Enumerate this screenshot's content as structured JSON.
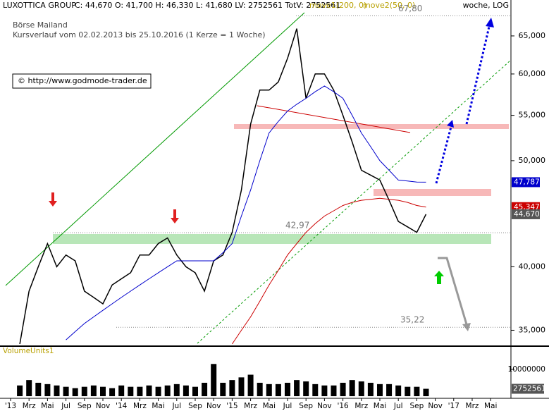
{
  "chart_data": {
    "type": "line",
    "log_scale": true,
    "title": "LUXOTTICA GROUP",
    "quote": "C: 44,670 O: 41,700 H: 46,330 L: 41,680 LV: 2752561 TotV: 2752561",
    "indicators": [
      "move1(200, 0)",
      "move2(50, 0)"
    ],
    "period": "woche, LOG",
    "subtitle": [
      "Börse Mailand",
      "Kursverlauf vom 02.02.2013 bis 25.10.2016 (1 Kerze = 1 Woche)"
    ],
    "source": "© http://www.godmode-trader.de",
    "x": [
      1,
      2,
      3,
      4,
      5,
      6,
      7,
      8,
      9,
      10,
      11,
      12,
      13,
      14,
      15,
      16,
      17,
      18,
      19,
      20,
      21,
      22,
      23,
      24,
      25,
      26,
      27,
      28,
      29,
      30,
      31,
      32,
      33,
      34,
      35,
      36,
      37,
      38,
      39,
      40,
      41,
      42,
      43,
      44,
      45
    ],
    "series": [
      {
        "name": "LUXOTTICA GROUP",
        "color": "#000000",
        "values": [
          34,
          38,
          40,
          42,
          40,
          41,
          40.5,
          38,
          37.5,
          37,
          38.5,
          39,
          39.5,
          41,
          41,
          42,
          42.5,
          41,
          40,
          39.5,
          38,
          40.5,
          41,
          43,
          47,
          54,
          58,
          58,
          59,
          62,
          66,
          57,
          60,
          60,
          58,
          55,
          52,
          49,
          48.5,
          48,
          46,
          44,
          43.5,
          43,
          44.67
        ]
      },
      {
        "name": "move2(50, 0)",
        "color": "#0000cc",
        "values": [
          null,
          null,
          null,
          null,
          null,
          34.3,
          34.9,
          35.5,
          36,
          36.5,
          37,
          37.5,
          38,
          38.5,
          39,
          39.5,
          40,
          40.5,
          40.5,
          40.5,
          40.5,
          40.5,
          41.2,
          42,
          44.5,
          47,
          50,
          53,
          54.3,
          55.5,
          56.3,
          57,
          57.8,
          58.5,
          57.8,
          57,
          55,
          53,
          51.5,
          50,
          49,
          48,
          47.9,
          47.8,
          47.787
        ]
      },
      {
        "name": "move1(200, 0)",
        "color": "#cc0000",
        "values": [
          null,
          null,
          null,
          null,
          null,
          null,
          null,
          null,
          null,
          null,
          null,
          null,
          null,
          null,
          null,
          null,
          null,
          null,
          null,
          null,
          null,
          null,
          null,
          34,
          35,
          36,
          37.2,
          38.5,
          39.7,
          41,
          42,
          43,
          43.8,
          44.5,
          45,
          45.5,
          45.8,
          46,
          46.1,
          46.2,
          46.1,
          46,
          45.8,
          45.5,
          45.347
        ]
      }
    ],
    "xlim": [
      -1.145,
      54.2
    ],
    "xticks": [
      {
        "value": 0,
        "label": "'13"
      },
      {
        "value": 2,
        "label": "Mrz"
      },
      {
        "value": 4,
        "label": "Mai"
      },
      {
        "value": 6,
        "label": "Jul"
      },
      {
        "value": 8,
        "label": "Sep"
      },
      {
        "value": 10,
        "label": "Nov"
      },
      {
        "value": 12,
        "label": "'14"
      },
      {
        "value": 14,
        "label": "Mrz"
      },
      {
        "value": 16,
        "label": "Mai"
      },
      {
        "value": 18,
        "label": "Jul"
      },
      {
        "value": 20,
        "label": "Sep"
      },
      {
        "value": 22,
        "label": "Nov"
      },
      {
        "value": 24,
        "label": "'15"
      },
      {
        "value": 26,
        "label": "Mrz"
      },
      {
        "value": 28,
        "label": "Mai"
      },
      {
        "value": 30,
        "label": "Jul"
      },
      {
        "value": 32,
        "label": "Sep"
      },
      {
        "value": 34,
        "label": "Nov"
      },
      {
        "value": 36,
        "label": "'16"
      },
      {
        "value": 38,
        "label": "Mrz"
      },
      {
        "value": 40,
        "label": "Mai"
      },
      {
        "value": 42,
        "label": "Jul"
      },
      {
        "value": 44,
        "label": "Sep"
      },
      {
        "value": 46,
        "label": "Nov"
      },
      {
        "value": 48,
        "label": "'17"
      },
      {
        "value": 50,
        "label": "Mrz"
      },
      {
        "value": 52,
        "label": "Mai"
      }
    ],
    "ylim": [
      33.9,
      70.1
    ],
    "yticks": [
      {
        "value": 35,
        "label": "35,000"
      },
      {
        "value": 40,
        "label": "40,000"
      },
      {
        "value": 50,
        "label": "50,000"
      },
      {
        "value": 55,
        "label": "55,000"
      },
      {
        "value": 60,
        "label": "60,000"
      },
      {
        "value": 65,
        "label": "65,000"
      }
    ],
    "levels": [
      {
        "value": 67.8,
        "label": "67,80"
      },
      {
        "value": 42.97,
        "label": "42,97"
      },
      {
        "value": 35.22,
        "label": "35,22"
      }
    ],
    "price_labels": [
      {
        "value": 47.787,
        "label": "47,787",
        "color": "#0000cc"
      },
      {
        "value": 45.347,
        "label": "45,347",
        "color": "#cc0000"
      },
      {
        "value": 44.67,
        "label": "44,670",
        "color": "#555555"
      }
    ],
    "volume": {
      "name": "VolumeUnits1",
      "color": "#000000",
      "values": [
        4000000,
        6000000,
        5000000,
        4500000,
        4000000,
        3500000,
        3000000,
        3500000,
        4000000,
        3500000,
        3000000,
        4000000,
        3500000,
        3500000,
        4000000,
        3500000,
        4000000,
        4500000,
        4000000,
        3500000,
        5000000,
        12000000,
        5000000,
        6000000,
        7000000,
        8000000,
        5000000,
        4500000,
        4500000,
        5000000,
        6000000,
        5500000,
        4500000,
        4000000,
        4000000,
        5000000,
        6000000,
        5500000,
        5000000,
        4500000,
        4500000,
        4000000,
        3500000,
        3500000,
        2752561
      ],
      "ylim": [
        0,
        16800000
      ],
      "yticks": [
        10000000
      ],
      "last": 2752561
    }
  }
}
